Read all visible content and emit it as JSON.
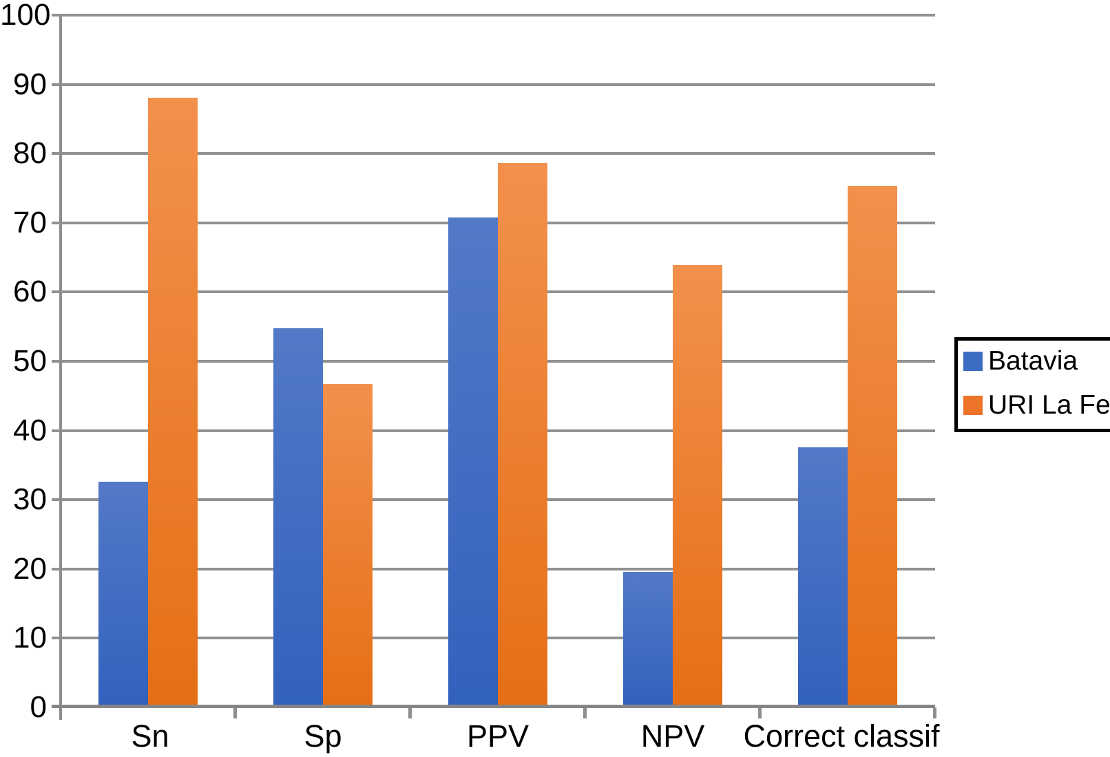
{
  "chart_data": {
    "type": "bar",
    "title": "",
    "xlabel": "",
    "ylabel": "",
    "categories": [
      "Sn",
      "Sp",
      "PPV",
      "NPV",
      "Correct classif"
    ],
    "series": [
      {
        "name": "Batavia",
        "values": [
          32.4,
          54.6,
          70.6,
          19.4,
          37.4
        ],
        "legend_color": "#3D6DC3",
        "gradient_top": "#5379C7",
        "gradient_bottom": "#3261BD"
      },
      {
        "name": "URI La Fe",
        "values": [
          87.9,
          46.5,
          78.4,
          63.7,
          75.1
        ],
        "legend_color": "#EC7328",
        "gradient_top": "#F2914C",
        "gradient_bottom": "#E56E15"
      }
    ],
    "ylim": [
      0,
      100
    ],
    "ytick_step": 10,
    "grid": "horizontal-only",
    "legend_position": "right",
    "legend_border_color": "#000000",
    "gridline_color": "#919191",
    "axis_color": "#8e8e8e",
    "text_color": "#000000",
    "background_color": "#ffffff"
  }
}
